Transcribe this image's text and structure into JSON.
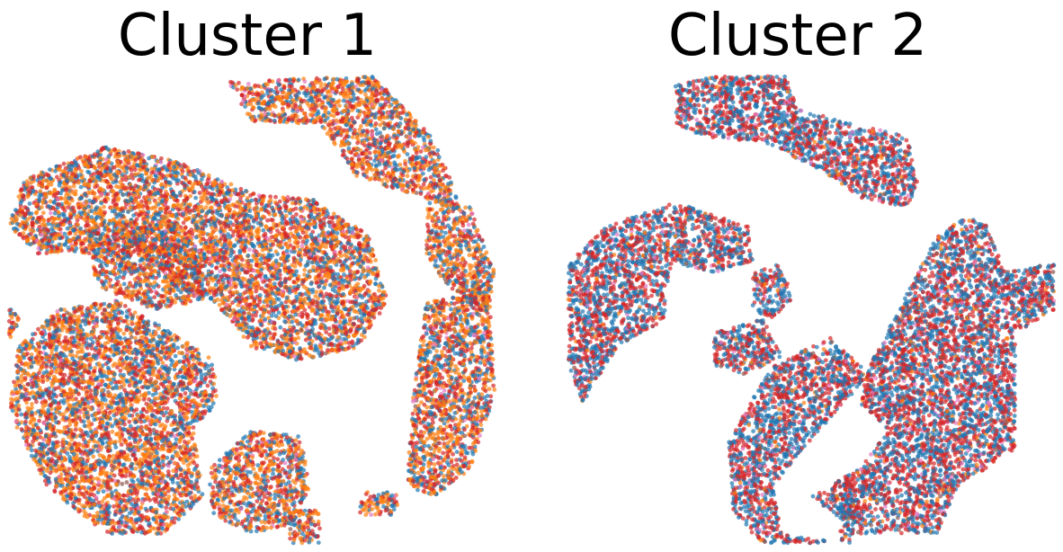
{
  "colors": {
    "blue": "#1f77b4",
    "orange": "#ff7f0e",
    "red": "#d62728",
    "pink": "#e377c2",
    "brown": "#8c564b"
  },
  "chart_data": [
    {
      "type": "scatter",
      "title": "Cluster 1",
      "axes_visible": false,
      "xlim": [
        0,
        1
      ],
      "ylim": [
        0,
        1
      ],
      "marker_alpha": 0.7,
      "color_mix": {
        "blue": 0.28,
        "orange": 0.37,
        "red": 0.3,
        "pink": 0.03,
        "brown": 0.02
      },
      "regions": [
        {
          "points": [
            [
              0.45,
              0.99
            ],
            [
              0.75,
              1.0
            ],
            [
              0.88,
              0.86
            ],
            [
              0.93,
              0.72
            ],
            [
              0.72,
              0.78
            ],
            [
              0.64,
              0.9
            ],
            [
              0.5,
              0.9
            ]
          ]
        },
        {
          "points": [
            [
              0.86,
              0.75
            ],
            [
              0.95,
              0.72
            ],
            [
              1.0,
              0.58
            ],
            [
              0.99,
              0.49
            ],
            [
              0.92,
              0.52
            ],
            [
              0.86,
              0.62
            ]
          ]
        },
        {
          "points": [
            [
              0.03,
              0.78
            ],
            [
              0.2,
              0.85
            ],
            [
              0.34,
              0.82
            ],
            [
              0.5,
              0.75
            ],
            [
              0.62,
              0.74
            ],
            [
              0.74,
              0.66
            ],
            [
              0.78,
              0.52
            ],
            [
              0.72,
              0.42
            ],
            [
              0.6,
              0.39
            ],
            [
              0.5,
              0.42
            ],
            [
              0.42,
              0.52
            ],
            [
              0.34,
              0.55
            ],
            [
              0.3,
              0.6
            ],
            [
              0.18,
              0.62
            ],
            [
              0.06,
              0.62
            ],
            [
              0.0,
              0.68
            ]
          ]
        },
        {
          "points": [
            [
              0.16,
              0.68
            ],
            [
              0.32,
              0.7
            ],
            [
              0.4,
              0.62
            ],
            [
              0.4,
              0.52
            ],
            [
              0.3,
              0.5
            ],
            [
              0.18,
              0.55
            ]
          ]
        },
        {
          "points": [
            [
              0.0,
              0.52
            ],
            [
              0.02,
              0.48
            ],
            [
              0.01,
              0.44
            ],
            [
              0.0,
              0.44
            ]
          ]
        },
        {
          "points": [
            [
              0.02,
              0.42
            ],
            [
              0.1,
              0.5
            ],
            [
              0.22,
              0.52
            ],
            [
              0.32,
              0.46
            ],
            [
              0.42,
              0.4
            ],
            [
              0.43,
              0.3
            ],
            [
              0.38,
              0.25
            ],
            [
              0.4,
              0.1
            ],
            [
              0.32,
              0.02
            ],
            [
              0.2,
              0.02
            ],
            [
              0.08,
              0.12
            ],
            [
              0.0,
              0.28
            ]
          ]
        },
        {
          "points": [
            [
              0.86,
              0.52
            ],
            [
              0.99,
              0.54
            ],
            [
              1.0,
              0.32
            ],
            [
              0.95,
              0.16
            ],
            [
              0.88,
              0.1
            ],
            [
              0.82,
              0.12
            ],
            [
              0.83,
              0.3
            ]
          ]
        },
        {
          "points": [
            [
              0.41,
              0.16
            ],
            [
              0.5,
              0.24
            ],
            [
              0.6,
              0.23
            ],
            [
              0.62,
              0.12
            ],
            [
              0.58,
              0.04
            ],
            [
              0.5,
              0.02
            ],
            [
              0.42,
              0.06
            ]
          ]
        },
        {
          "points": [
            [
              0.57,
              0.07
            ],
            [
              0.64,
              0.07
            ],
            [
              0.64,
              0.0
            ],
            [
              0.58,
              0.0
            ]
          ]
        },
        {
          "points": [
            [
              0.73,
              0.11
            ],
            [
              0.8,
              0.11
            ],
            [
              0.8,
              0.06
            ],
            [
              0.72,
              0.06
            ]
          ]
        }
      ]
    },
    {
      "type": "scatter",
      "title": "Cluster 2",
      "axes_visible": false,
      "xlim": [
        0,
        1
      ],
      "ylim": [
        0,
        1
      ],
      "marker_alpha": 0.7,
      "color_mix": {
        "blue": 0.46,
        "orange": 0.04,
        "red": 0.44,
        "pink": 0.04,
        "brown": 0.02
      },
      "regions": [
        {
          "points": [
            [
              0.22,
              0.98
            ],
            [
              0.3,
              1.0
            ],
            [
              0.45,
              1.0
            ],
            [
              0.47,
              0.93
            ],
            [
              0.58,
              0.9
            ],
            [
              0.7,
              0.87
            ],
            [
              0.72,
              0.78
            ],
            [
              0.7,
              0.72
            ],
            [
              0.6,
              0.74
            ],
            [
              0.52,
              0.8
            ],
            [
              0.4,
              0.86
            ],
            [
              0.28,
              0.87
            ],
            [
              0.22,
              0.9
            ]
          ]
        },
        {
          "points": [
            [
              0.0,
              0.6
            ],
            [
              0.08,
              0.68
            ],
            [
              0.22,
              0.73
            ],
            [
              0.37,
              0.68
            ],
            [
              0.38,
              0.6
            ],
            [
              0.3,
              0.58
            ],
            [
              0.22,
              0.6
            ],
            [
              0.2,
              0.55
            ],
            [
              0.2,
              0.48
            ],
            [
              0.1,
              0.42
            ],
            [
              0.03,
              0.3
            ],
            [
              0.0,
              0.38
            ]
          ]
        },
        {
          "points": [
            [
              0.38,
              0.58
            ],
            [
              0.44,
              0.6
            ],
            [
              0.46,
              0.52
            ],
            [
              0.42,
              0.48
            ],
            [
              0.38,
              0.5
            ]
          ]
        },
        {
          "points": [
            [
              0.3,
              0.45
            ],
            [
              0.4,
              0.48
            ],
            [
              0.44,
              0.4
            ],
            [
              0.36,
              0.36
            ],
            [
              0.3,
              0.38
            ]
          ]
        },
        {
          "points": [
            [
              0.62,
              0.38
            ],
            [
              0.76,
              0.66
            ],
            [
              0.82,
              0.7
            ],
            [
              0.86,
              0.68
            ],
            [
              0.9,
              0.58
            ],
            [
              1.0,
              0.6
            ],
            [
              1.0,
              0.5
            ],
            [
              0.92,
              0.45
            ],
            [
              0.92,
              0.2
            ],
            [
              0.8,
              0.12
            ],
            [
              0.76,
              0.02
            ],
            [
              0.6,
              0.02
            ],
            [
              0.5,
              0.1
            ],
            [
              0.6,
              0.16
            ],
            [
              0.66,
              0.24
            ],
            [
              0.6,
              0.3
            ]
          ]
        },
        {
          "points": [
            [
              0.33,
              0.22
            ],
            [
              0.42,
              0.38
            ],
            [
              0.54,
              0.44
            ],
            [
              0.62,
              0.36
            ],
            [
              0.55,
              0.28
            ],
            [
              0.48,
              0.2
            ],
            [
              0.42,
              0.12
            ],
            [
              0.44,
              0.02
            ],
            [
              0.56,
              0.0
            ],
            [
              0.56,
              0.1
            ],
            [
              0.6,
              0.08
            ],
            [
              0.58,
              0.0
            ],
            [
              0.4,
              0.0
            ],
            [
              0.34,
              0.06
            ]
          ]
        }
      ]
    }
  ]
}
